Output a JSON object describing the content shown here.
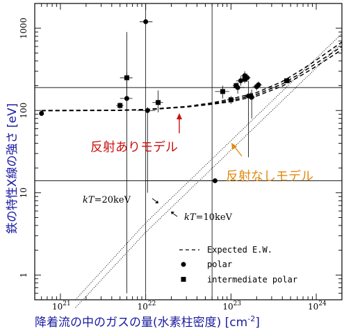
{
  "chart_data": {
    "type": "scatter",
    "title": "",
    "xlabel": "降着流の中のガスの量(水素柱密度) [cm",
    "xlabel_sup": "-2",
    "xlabel_close": "]",
    "ylabel": "鉄の特性X線の強さ [eV]",
    "x_scale": "log",
    "y_scale": "log",
    "xlim": [
      5e+20,
      2e+24
    ],
    "ylim": [
      0.5,
      2000
    ],
    "x_ticks": [
      {
        "value": 1e+21,
        "base": "10",
        "exp": "21"
      },
      {
        "value": 1e+22,
        "base": "10",
        "exp": "22"
      },
      {
        "value": 1e+23,
        "base": "10",
        "exp": "23"
      },
      {
        "value": 1e+24,
        "base": "10",
        "exp": "24"
      }
    ],
    "y_ticks": [
      {
        "value": 1,
        "label": "1"
      },
      {
        "value": 10,
        "label": "10"
      },
      {
        "value": 100,
        "label": "100"
      },
      {
        "value": 1000,
        "label": "1000"
      }
    ],
    "series": [
      {
        "name": "polar",
        "marker": "circle",
        "points": [
          {
            "x": 6e+20,
            "y": 92,
            "xerr": [
              6e+20,
              6e+20
            ],
            "yerr": [
              92,
              92
            ]
          },
          {
            "x": 6e+21,
            "y": 140,
            "xerr": [
              5e+21,
              7e+21
            ],
            "yerr": [
              0.6,
              900
            ]
          },
          {
            "x": 1e+22,
            "y": 1200,
            "xerr": [
              8.5e+21,
              1.2e+22
            ],
            "yerr": [
              0.6,
              2000
            ]
          },
          {
            "x": 1.05e+22,
            "y": 100,
            "xerr": [
              8e+21,
              1.3e+22
            ],
            "yerr": [
              10,
              110
            ]
          },
          {
            "x": 6.5e+22,
            "y": 14,
            "xerr": [
              1e+22,
              1.5e+23
            ],
            "yerr": [
              14,
              14
            ]
          },
          {
            "x": 1.2e+23,
            "y": 190,
            "xerr": [
              1e+23,
              1.45e+23
            ],
            "yerr": [
              160,
              220
            ]
          },
          {
            "x": 1.3e+23,
            "y": 230,
            "xerr": [
              1.15e+23,
              1.45e+23
            ],
            "yerr": [
              200,
              260
            ]
          },
          {
            "x": 1.45e+23,
            "y": 265,
            "xerr": [
              1.3e+23,
              1.6e+23
            ],
            "yerr": [
              240,
              300
            ]
          },
          {
            "x": 1.55e+23,
            "y": 250,
            "xerr": [
              1.4e+23,
              1.7e+23
            ],
            "yerr": [
              225,
              280
            ]
          },
          {
            "x": 1.6e+23,
            "y": 150,
            "xerr": [
              1.45e+23,
              1.75e+23
            ],
            "yerr": [
              27,
              230
            ]
          },
          {
            "x": 1.75e+23,
            "y": 145,
            "xerr": [
              1.6e+23,
              1.9e+23
            ],
            "yerr": [
              80,
              180
            ]
          },
          {
            "x": 2e+23,
            "y": 195,
            "xerr": [
              1.8e+23,
              2.2e+23
            ],
            "yerr": [
              175,
              215
            ]
          },
          {
            "x": 2.1e+23,
            "y": 205,
            "xerr": [
              1.9e+23,
              2.3e+23
            ],
            "yerr": [
              185,
              225
            ]
          }
        ]
      },
      {
        "name": "intermediate polar",
        "marker": "square",
        "points": [
          {
            "x": 5e+21,
            "y": 115,
            "xerr": [
              4.5e+21,
              5.5e+21
            ],
            "yerr": [
              105,
              125
            ]
          },
          {
            "x": 6e+21,
            "y": 250,
            "xerr": [
              5e+21,
              7e+21
            ],
            "yerr": [
              140,
              290
            ]
          },
          {
            "x": 1.4e+22,
            "y": 125,
            "xerr": [
              1.2e+22,
              1.6e+22
            ],
            "yerr": [
              95,
              175
            ]
          },
          {
            "x": 8e+22,
            "y": 170,
            "xerr": [
              6.5e+22,
              9.5e+22
            ],
            "yerr": [
              140,
              200
            ]
          },
          {
            "x": 1e+23,
            "y": 135,
            "xerr": [
              9e+22,
              1.1e+23
            ],
            "yerr": [
              120,
              150
            ]
          },
          {
            "x": 1.15e+23,
            "y": 200,
            "xerr": [
              1.05e+23,
              1.25e+23
            ],
            "yerr": [
              180,
              220
            ]
          },
          {
            "x": 1.45e+23,
            "y": 240,
            "xerr": [
              1.3e+23,
              1.6e+23
            ],
            "yerr": [
              215,
              265
            ]
          },
          {
            "x": 1.7e+23,
            "y": 150,
            "xerr": [
              1.55e+23,
              1.85e+23
            ],
            "yerr": [
              135,
              165
            ]
          },
          {
            "x": 4.5e+23,
            "y": 230,
            "xerr": [
              4e+23,
              5e+23
            ],
            "yerr": [
              215,
              245
            ]
          }
        ]
      },
      {
        "name": "Expected E.W.",
        "style": "dashed",
        "curves": [
          [
            [
              6e+20,
              100
            ],
            [
              5e+21,
              101
            ],
            [
              1e+22,
              103
            ],
            [
              3e+22,
              112
            ],
            [
              6e+22,
              124
            ],
            [
              1e+23,
              138
            ],
            [
              2e+23,
              165
            ],
            [
              4e+23,
              225
            ],
            [
              7e+23,
              320
            ],
            [
              1e+24,
              410
            ],
            [
              2e+24,
              680
            ]
          ],
          [
            [
              6e+20,
              100
            ],
            [
              5e+21,
              101
            ],
            [
              1e+22,
              103
            ],
            [
              3e+22,
              111
            ],
            [
              6e+22,
              121
            ],
            [
              1e+23,
              132
            ],
            [
              2e+23,
              157
            ],
            [
              4e+23,
              210
            ],
            [
              7e+23,
              295
            ],
            [
              1e+24,
              375
            ],
            [
              2e+24,
              600
            ]
          ],
          [
            [
              6e+20,
              99
            ],
            [
              5e+21,
              100
            ],
            [
              1e+22,
              102
            ],
            [
              3e+22,
              110
            ],
            [
              6e+22,
              119
            ],
            [
              1e+23,
              128
            ],
            [
              2e+23,
              150
            ],
            [
              4e+23,
              198
            ],
            [
              7e+23,
              275
            ],
            [
              1e+24,
              345
            ],
            [
              2e+24,
              550
            ]
          ]
        ]
      },
      {
        "name": "",
        "style": "dotted",
        "curves": [
          [
            [
              1.5e+21,
              0.4
            ],
            [
              1e+22,
              3.3
            ],
            [
              1e+23,
              33
            ],
            [
              1e+24,
              330
            ],
            [
              2e+24,
              660
            ]
          ],
          [
            [
              1.5e+21,
              0.5
            ],
            [
              1e+22,
              4.3
            ],
            [
              1e+23,
              43
            ],
            [
              1e+24,
              430
            ],
            [
              2e+24,
              860
            ]
          ]
        ]
      }
    ],
    "reference_lines": {
      "horizontal": [
        190,
        14
      ],
      "vertical": [
        6e+22
      ]
    },
    "legend": {
      "placement": "bottom-right",
      "entries": [
        {
          "label": "Expected E.W.",
          "symbol": "dashed-line"
        },
        {
          "label": "polar",
          "symbol": "circle"
        },
        {
          "label": "intermediate polar",
          "symbol": "square"
        }
      ]
    },
    "annotations": {
      "reflection_model": "反射ありモデル",
      "no_reflection_model": "反射なしモデル",
      "kt20": "kT=20keV",
      "kt10": "kT=10keV"
    },
    "colors": {
      "axis_title": "#1a1aa0",
      "reflection_annotation": "#cc1111",
      "no_reflection_annotation": "#e08a10",
      "data": "#000000"
    }
  }
}
